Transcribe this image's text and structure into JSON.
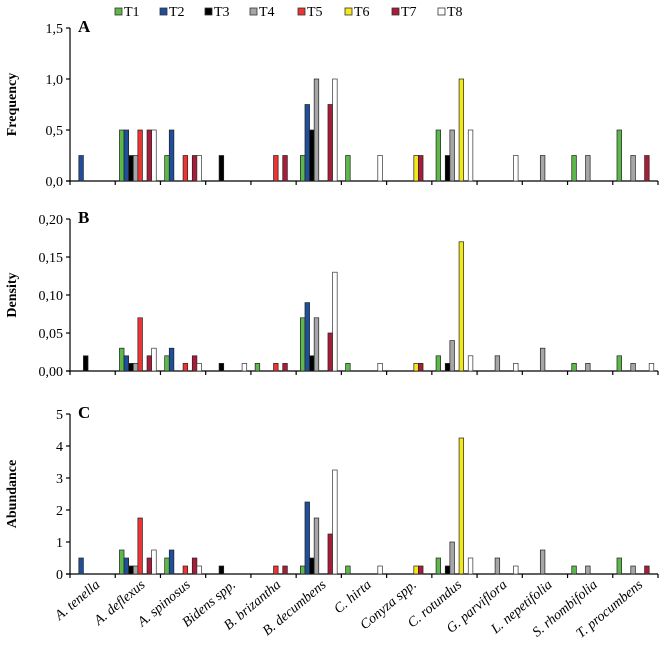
{
  "legend": [
    {
      "name": "T1",
      "color": "#5cb84a"
    },
    {
      "name": "T2",
      "color": "#1f4e9c"
    },
    {
      "name": "T3",
      "color": "#000000"
    },
    {
      "name": "T4",
      "color": "#a6a6a6"
    },
    {
      "name": "T5",
      "color": "#ee3333"
    },
    {
      "name": "T6",
      "color": "#f2e81e"
    },
    {
      "name": "T7",
      "color": "#a81c3a"
    },
    {
      "name": "T8",
      "color": "#ffffff"
    }
  ],
  "chart_data": [
    {
      "type": "bar",
      "panel": "A",
      "ylabel": "Frequency",
      "ylim": [
        0,
        1.5
      ],
      "yticks": [
        "0,0",
        "0,5",
        "1,0",
        "1,5"
      ],
      "ytick_values": [
        0,
        0.5,
        1.0,
        1.5
      ],
      "categories": [
        "A. tenella",
        "A. deflexus",
        "A. spinosus",
        "Bidens spp.",
        "B. brizantha",
        "B. decumbens",
        "C. hirta",
        "Conyza spp.",
        "C. rotundus",
        "G. parviflora",
        "L. nepetifolia",
        "S. rhombifolia",
        "T. procumbens"
      ],
      "series": [
        {
          "name": "T1",
          "values": [
            0,
            0.5,
            0.25,
            0,
            0,
            0.25,
            0.25,
            0,
            0.5,
            0,
            0,
            0.25,
            0.5
          ]
        },
        {
          "name": "T2",
          "values": [
            0.25,
            0.5,
            0.5,
            0,
            0,
            0.75,
            0,
            0,
            0,
            0,
            0,
            0,
            0
          ]
        },
        {
          "name": "T3",
          "values": [
            0,
            0.25,
            0,
            0.25,
            0,
            0.5,
            0,
            0,
            0.25,
            0,
            0,
            0,
            0
          ]
        },
        {
          "name": "T4",
          "values": [
            0,
            0.25,
            0,
            0,
            0,
            1.0,
            0,
            0,
            0.5,
            0,
            0.25,
            0.25,
            0.25
          ]
        },
        {
          "name": "T5",
          "values": [
            0,
            0.5,
            0.25,
            0,
            0.25,
            0,
            0,
            0,
            0,
            0,
            0,
            0,
            0
          ]
        },
        {
          "name": "T6",
          "values": [
            0,
            0,
            0,
            0,
            0,
            0,
            0,
            0.25,
            1.0,
            0,
            0,
            0,
            0
          ]
        },
        {
          "name": "T7",
          "values": [
            0,
            0.5,
            0.25,
            0,
            0.25,
            0.75,
            0,
            0.25,
            0,
            0,
            0,
            0,
            0.25
          ]
        },
        {
          "name": "T8",
          "values": [
            0,
            0.5,
            0.25,
            0,
            0,
            1.0,
            0.25,
            0,
            0.5,
            0.25,
            0,
            0,
            0
          ]
        }
      ]
    },
    {
      "type": "bar",
      "panel": "B",
      "ylabel": "Density",
      "ylim": [
        0,
        0.2
      ],
      "yticks": [
        "0,00",
        "0,05",
        "0,10",
        "0,15",
        "0,20"
      ],
      "ytick_values": [
        0,
        0.05,
        0.1,
        0.15,
        0.2
      ],
      "categories": [
        "A. tenella",
        "A. deflexus",
        "A. spinosus",
        "Bidens spp.",
        "B. brizantha",
        "B. decumbens",
        "C. hirta",
        "Conyza spp.",
        "C. rotundus",
        "G. parviflora",
        "L. nepetifolia",
        "S. rhombifolia",
        "T. procumbens"
      ],
      "series": [
        {
          "name": "T1",
          "values": [
            0,
            0.03,
            0.02,
            0,
            0.01,
            0.07,
            0.01,
            0,
            0.02,
            0,
            0,
            0.01,
            0.02
          ]
        },
        {
          "name": "T2",
          "values": [
            0,
            0.02,
            0.03,
            0,
            0,
            0.09,
            0,
            0,
            0,
            0,
            0,
            0,
            0
          ]
        },
        {
          "name": "T3",
          "values": [
            0.02,
            0.01,
            0,
            0.01,
            0,
            0.02,
            0,
            0,
            0.01,
            0,
            0,
            0,
            0
          ]
        },
        {
          "name": "T4",
          "values": [
            0,
            0.01,
            0,
            0,
            0,
            0.07,
            0,
            0,
            0.04,
            0.02,
            0.03,
            0.01,
            0.01
          ]
        },
        {
          "name": "T5",
          "values": [
            0,
            0.07,
            0.01,
            0,
            0.01,
            0,
            0,
            0,
            0,
            0,
            0,
            0,
            0
          ]
        },
        {
          "name": "T6",
          "values": [
            0,
            0,
            0,
            0,
            0,
            0,
            0,
            0.01,
            0.17,
            0,
            0,
            0,
            0
          ]
        },
        {
          "name": "T7",
          "values": [
            0,
            0.02,
            0.02,
            0,
            0.01,
            0.05,
            0,
            0.01,
            0,
            0,
            0,
            0,
            0
          ]
        },
        {
          "name": "T8",
          "values": [
            0,
            0.03,
            0.01,
            0.01,
            0,
            0.13,
            0.01,
            0,
            0.02,
            0.01,
            0,
            0,
            0.01
          ]
        }
      ]
    },
    {
      "type": "bar",
      "panel": "C",
      "ylabel": "Abundance",
      "ylim": [
        0,
        5
      ],
      "yticks": [
        "0",
        "1",
        "2",
        "3",
        "4",
        "5"
      ],
      "ytick_values": [
        0,
        1,
        2,
        3,
        4,
        5
      ],
      "categories": [
        "A. tenella",
        "A. deflexus",
        "A. spinosus",
        "Bidens spp.",
        "B. brizantha",
        "B. decumbens",
        "C. hirta",
        "Conyza spp.",
        "C. rotundus",
        "G. parviflora",
        "L. nepetifolia",
        "S. rhombifolia",
        "T. procumbens"
      ],
      "series": [
        {
          "name": "T1",
          "values": [
            0,
            0.75,
            0.5,
            0,
            0,
            0.25,
            0.25,
            0,
            0.5,
            0,
            0,
            0.25,
            0.5
          ]
        },
        {
          "name": "T2",
          "values": [
            0.5,
            0.5,
            0.75,
            0,
            0,
            2.25,
            0,
            0,
            0,
            0,
            0,
            0,
            0
          ]
        },
        {
          "name": "T3",
          "values": [
            0,
            0.25,
            0,
            0.25,
            0,
            0.5,
            0,
            0,
            0.25,
            0,
            0,
            0,
            0
          ]
        },
        {
          "name": "T4",
          "values": [
            0,
            0.25,
            0,
            0,
            0,
            1.75,
            0,
            0,
            1.0,
            0.5,
            0.75,
            0.25,
            0.25
          ]
        },
        {
          "name": "T5",
          "values": [
            0,
            1.75,
            0.25,
            0,
            0.25,
            0,
            0,
            0,
            0,
            0,
            0,
            0,
            0
          ]
        },
        {
          "name": "T6",
          "values": [
            0,
            0,
            0,
            0,
            0,
            0,
            0,
            0.25,
            4.25,
            0,
            0,
            0,
            0
          ]
        },
        {
          "name": "T7",
          "values": [
            0,
            0.5,
            0.5,
            0,
            0.25,
            1.25,
            0,
            0.25,
            0,
            0,
            0,
            0,
            0.25
          ]
        },
        {
          "name": "T8",
          "values": [
            0,
            0.75,
            0.25,
            0,
            0,
            3.25,
            0.25,
            0,
            0.5,
            0.25,
            0,
            0,
            0
          ]
        }
      ]
    }
  ]
}
